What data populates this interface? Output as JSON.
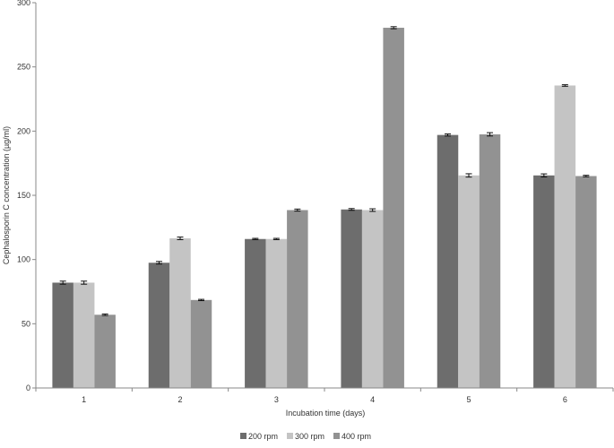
{
  "chart_data": {
    "type": "bar",
    "title": "",
    "xlabel": "Incubation  time  (days)",
    "ylabel": "Cephalosporin  C concentration   (µg/ml)",
    "categories": [
      "1",
      "2",
      "3",
      "4",
      "5",
      "6"
    ],
    "ylim": [
      0,
      300
    ],
    "yticks": [
      0,
      50,
      100,
      150,
      200,
      250,
      300
    ],
    "grid": false,
    "legend_position": "bottom",
    "series": [
      {
        "name": "200 rpm",
        "color": "#6d6d6d",
        "values": [
          82,
          97.5,
          116,
          139,
          197,
          165.5
        ],
        "errors": [
          1.2,
          1.0,
          0.5,
          0.7,
          0.8,
          1.2
        ]
      },
      {
        "name": "300 rpm",
        "color": "#c4c4c4",
        "values": [
          82,
          116.5,
          116,
          138.5,
          165.5,
          235.5
        ],
        "errors": [
          1.2,
          1.0,
          0.5,
          1.0,
          1.3,
          0.6
        ]
      },
      {
        "name": "400 rpm",
        "color": "#929292",
        "values": [
          57,
          68.5,
          138.5,
          280.5,
          197.5,
          165
        ],
        "errors": [
          0.6,
          0.5,
          0.8,
          0.8,
          1.3,
          0.6
        ]
      }
    ]
  }
}
